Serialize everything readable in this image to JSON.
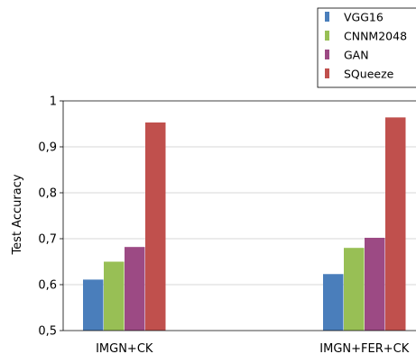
{
  "chart_data": {
    "type": "bar",
    "title": "",
    "xlabel": "",
    "ylabel": "Test Accuracy",
    "categories": [
      "IMGN+CK",
      "IMGN+FER+CK"
    ],
    "series": [
      {
        "name": "VGG16",
        "color": "#4a7ebb",
        "values": [
          0.611,
          0.623
        ]
      },
      {
        "name": "CNNM2048",
        "color": "#98bf55",
        "values": [
          0.65,
          0.68
        ]
      },
      {
        "name": "GAN",
        "color": "#9c4a84",
        "values": [
          0.682,
          0.702
        ]
      },
      {
        "name": "SQueeze",
        "color": "#c0504d",
        "values": [
          0.953,
          0.964
        ]
      }
    ],
    "ylim": [
      0.5,
      1.0
    ],
    "yticks": [
      0.5,
      0.6,
      0.7,
      0.8,
      0.9,
      1.0
    ],
    "ytick_labels": [
      "0,5",
      "0,6",
      "0,7",
      "0,8",
      "0,9",
      "1"
    ],
    "grid": true,
    "legend_position": "top-right"
  }
}
